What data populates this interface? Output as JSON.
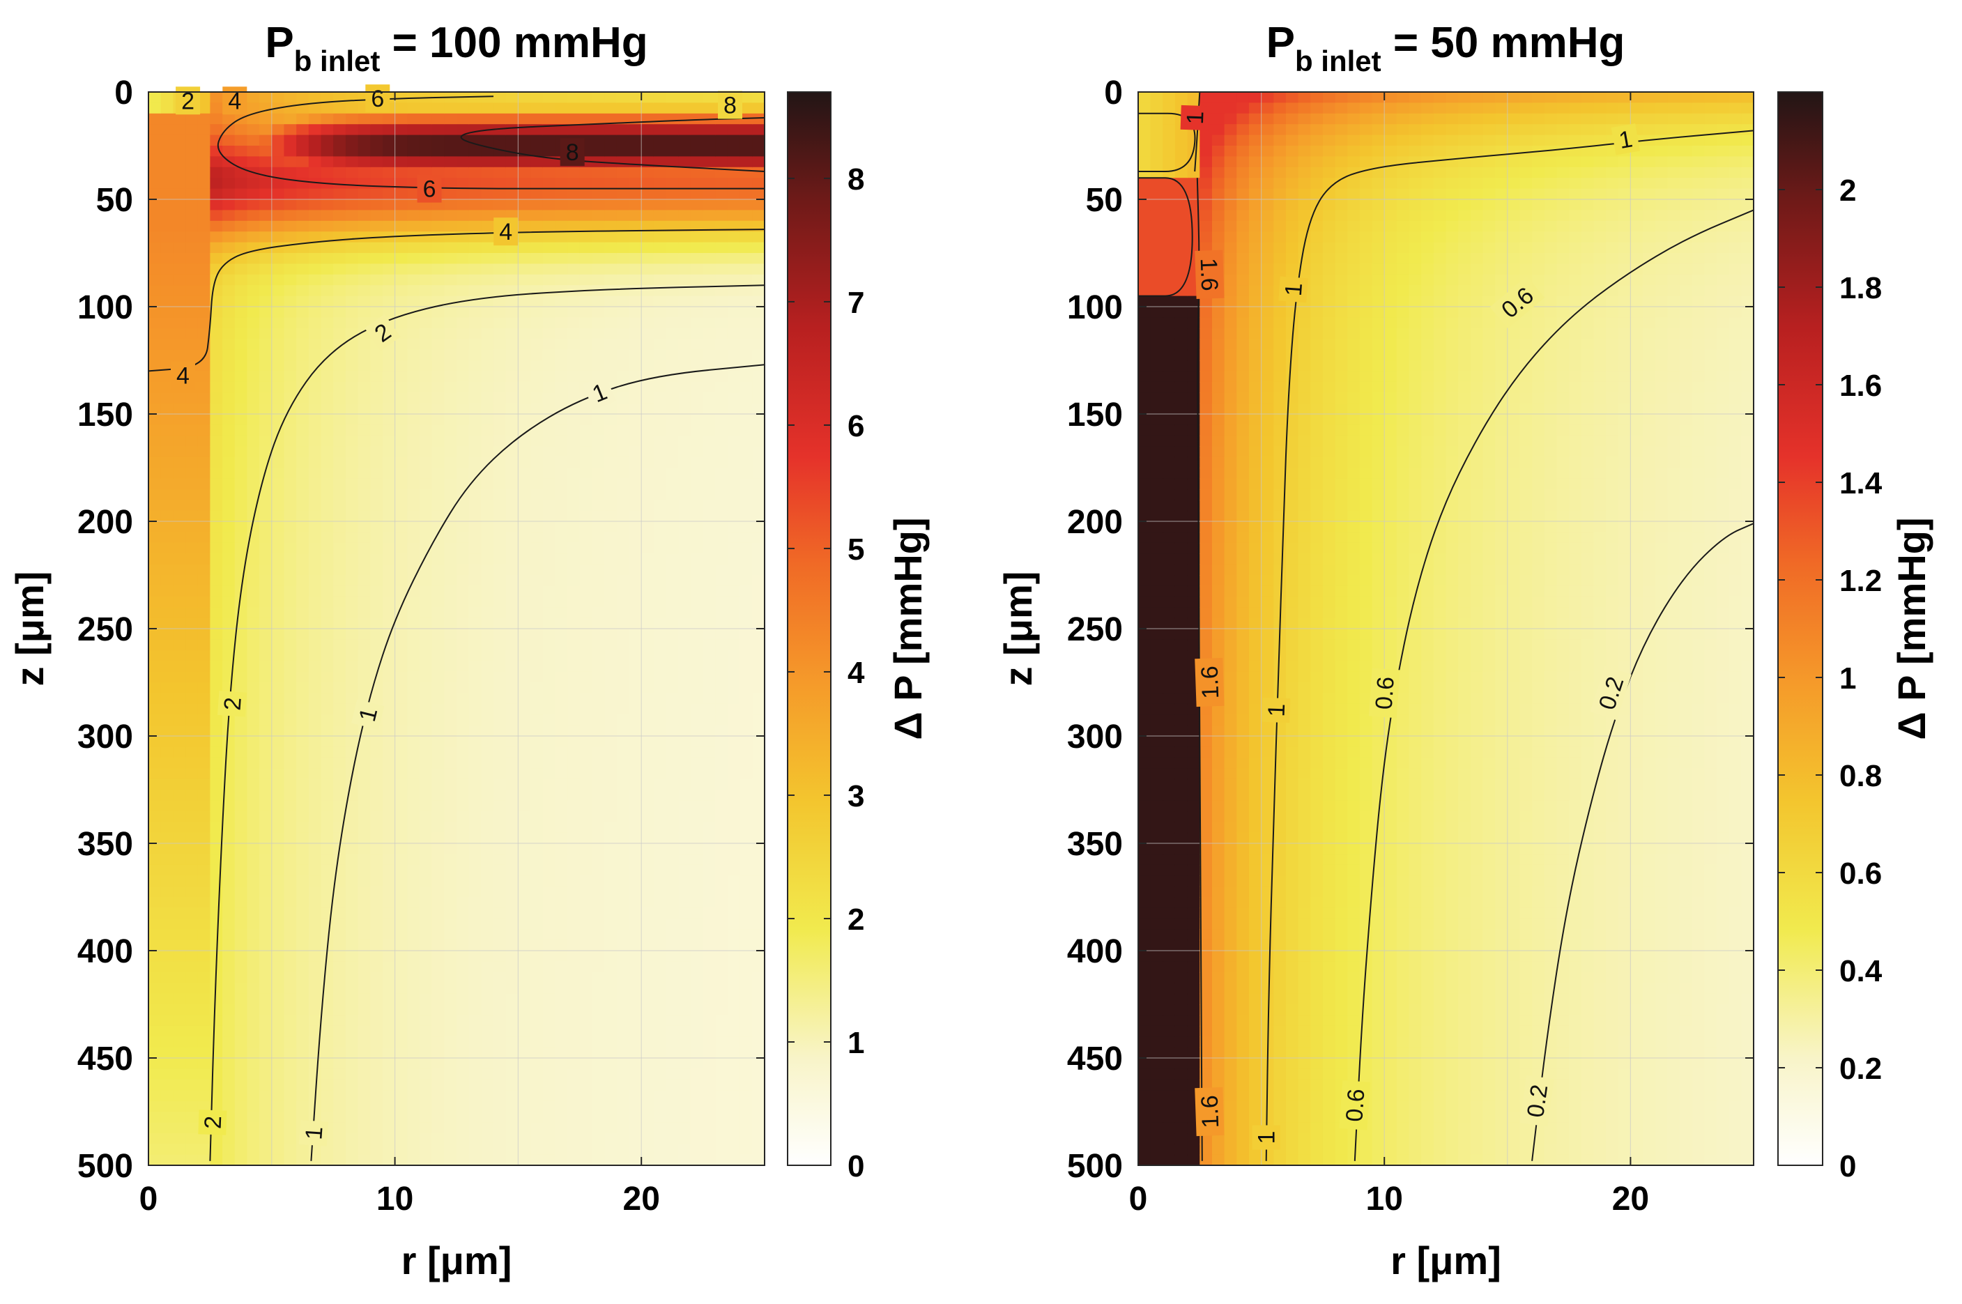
{
  "chart_data": [
    {
      "type": "heatmap",
      "title": {
        "main": "P",
        "sub": "b inlet",
        "rest": " = 100 mmHg"
      },
      "xlabel": "r [μm]",
      "ylabel": "z [μm]",
      "colorbar_label": "Δ P [mmHg]",
      "xlim": [
        0,
        25
      ],
      "ylim": [
        0,
        500
      ],
      "y_reversed": true,
      "clim": [
        0,
        8.7
      ],
      "grid": true,
      "x_ticks": [
        0,
        10,
        20
      ],
      "y_ticks": [
        0,
        50,
        100,
        150,
        200,
        250,
        300,
        350,
        400,
        450,
        500
      ],
      "colorbar_ticks": [
        0,
        1,
        2,
        3,
        4,
        5,
        6,
        7,
        8
      ],
      "contours": [
        {
          "level": 1,
          "label": "1",
          "points": [
            [
              6.6,
              498
            ],
            [
              7.0,
              430
            ],
            [
              7.5,
              370
            ],
            [
              8.2,
              320
            ],
            [
              9.0,
              280
            ],
            [
              10.0,
              245
            ],
            [
              11.5,
              210
            ],
            [
              13.0,
              182
            ],
            [
              15.0,
              160
            ],
            [
              17.5,
              143
            ],
            [
              20.5,
              132
            ],
            [
              25,
              127
            ]
          ]
        },
        {
          "level": 2,
          "label": "2",
          "points": [
            [
              2.5,
              498
            ],
            [
              2.7,
              420
            ],
            [
              3.0,
              340
            ],
            [
              3.3,
              280
            ],
            [
              3.8,
              225
            ],
            [
              4.6,
              180
            ],
            [
              5.6,
              148
            ],
            [
              7.2,
              122
            ],
            [
              9.5,
              106
            ],
            [
              13.0,
              96
            ],
            [
              18.0,
              92
            ],
            [
              25,
              90
            ]
          ]
        },
        {
          "level": 4,
          "label": "4",
          "points": [
            [
              0,
              130
            ],
            [
              2.3,
              128
            ],
            [
              2.5,
              110
            ],
            [
              2.6,
              90
            ],
            [
              3.0,
              80
            ],
            [
              4.0,
              74
            ],
            [
              6.5,
              70
            ],
            [
              10.0,
              67
            ],
            [
              16.0,
              65
            ],
            [
              25,
              64
            ]
          ]
        },
        {
          "level": 6,
          "label": "6",
          "points": [
            [
              25,
              45
            ],
            [
              18.0,
              45
            ],
            [
              12.0,
              45
            ],
            [
              7.0,
              43
            ],
            [
              4.0,
              38
            ],
            [
              2.7,
              28
            ],
            [
              3.0,
              18
            ],
            [
              4.0,
              10
            ],
            [
              6.5,
              5
            ],
            [
              10.0,
              3
            ],
            [
              14.0,
              2
            ]
          ]
        },
        {
          "level": 8,
          "label": "8",
          "points": [
            [
              25,
              37
            ],
            [
              20.0,
              34
            ],
            [
              16.0,
              31
            ],
            [
              13.0,
              24
            ],
            [
              12.5,
              20
            ],
            [
              14.0,
              17
            ],
            [
              18.0,
              15
            ],
            [
              22.0,
              13
            ],
            [
              25,
              12
            ]
          ]
        }
      ],
      "contour_labels": [
        {
          "text": "1",
          "r": 18.3,
          "z": 140,
          "rot": -22
        },
        {
          "text": "1",
          "r": 8.9,
          "z": 290,
          "rot": -76
        },
        {
          "text": "1",
          "r": 6.7,
          "z": 485,
          "rot": -86
        },
        {
          "text": "2",
          "r": 9.5,
          "z": 112,
          "rot": -35
        },
        {
          "text": "2",
          "r": 3.4,
          "z": 285,
          "rot": -86
        },
        {
          "text": "2",
          "r": 2.6,
          "z": 480,
          "rot": -88
        },
        {
          "text": "4",
          "r": 1.4,
          "z": 132,
          "rot": 0
        },
        {
          "text": "4",
          "r": 14.5,
          "z": 65,
          "rot": 0
        },
        {
          "text": "4",
          "r": 3.5,
          "z": 4,
          "rot": 0
        },
        {
          "text": "2",
          "r": 1.6,
          "z": 4,
          "rot": 0
        },
        {
          "text": "6",
          "r": 9.3,
          "z": 3,
          "rot": 0
        },
        {
          "text": "6",
          "r": 11.4,
          "z": 45,
          "rot": 0
        },
        {
          "text": "8",
          "r": 17.2,
          "z": 28,
          "rot": 0
        },
        {
          "text": "8",
          "r": 23.6,
          "z": 6,
          "rot": 0
        }
      ]
    },
    {
      "type": "heatmap",
      "title": {
        "main": "P",
        "sub": "b inlet",
        "rest": " = 50 mmHg"
      },
      "xlabel": "r [μm]",
      "ylabel": "z [μm]",
      "colorbar_label": "Δ P [mmHg]",
      "xlim": [
        0,
        25
      ],
      "ylim": [
        0,
        500
      ],
      "y_reversed": true,
      "clim": [
        0,
        2.2
      ],
      "grid": true,
      "x_ticks": [
        0,
        10,
        20
      ],
      "y_ticks": [
        0,
        50,
        100,
        150,
        200,
        250,
        300,
        350,
        400,
        450,
        500
      ],
      "colorbar_ticks": [
        0,
        0.2,
        0.4,
        0.6,
        0.8,
        1,
        1.2,
        1.4,
        1.6,
        1.8,
        2
      ],
      "contours": [
        {
          "level": 0.2,
          "label": "0.2",
          "points": [
            [
              16.0,
              498
            ],
            [
              16.6,
              440
            ],
            [
              17.4,
              380
            ],
            [
              18.4,
              330
            ],
            [
              19.4,
              290
            ],
            [
              20.6,
              255
            ],
            [
              22.2,
              225
            ],
            [
              23.8,
              207
            ],
            [
              25,
              201
            ]
          ]
        },
        {
          "level": 0.6,
          "label": "0.6",
          "points": [
            [
              8.8,
              498
            ],
            [
              9.1,
              430
            ],
            [
              9.5,
              370
            ],
            [
              9.9,
              320
            ],
            [
              10.4,
              280
            ],
            [
              11.2,
              235
            ],
            [
              12.3,
              195
            ],
            [
              13.8,
              160
            ],
            [
              15.5,
              130
            ],
            [
              17.5,
              105
            ],
            [
              19.8,
              85
            ],
            [
              22.3,
              68
            ],
            [
              25,
              55
            ]
          ]
        },
        {
          "level": 1,
          "label": "1",
          "points": [
            [
              5.2,
              498
            ],
            [
              5.3,
              420
            ],
            [
              5.5,
              340
            ],
            [
              5.7,
              270
            ],
            [
              5.9,
              200
            ],
            [
              6.1,
              140
            ],
            [
              6.4,
              95
            ],
            [
              6.9,
              60
            ],
            [
              7.8,
              42
            ],
            [
              9.5,
              35
            ],
            [
              13.0,
              31
            ],
            [
              17.0,
              27
            ],
            [
              21.0,
              22
            ],
            [
              25,
              18
            ]
          ]
        },
        {
          "level": 1.6,
          "label": "1.6",
          "points": [
            [
              2.6,
              498
            ],
            [
              2.55,
              400
            ],
            [
              2.5,
              300
            ],
            [
              2.45,
              200
            ],
            [
              2.4,
              120
            ],
            [
              2.5,
              80
            ],
            [
              2.4,
              40
            ]
          ]
        },
        {
          "level": 1,
          "label": "",
          "points": [
            [
              2.3,
              37
            ],
            [
              2.4,
              20
            ],
            [
              2.5,
              0
            ]
          ]
        },
        {
          "level": 1.6,
          "label": "",
          "points": [
            [
              0,
              95
            ],
            [
              2.2,
              95
            ],
            [
              2.2,
              40
            ],
            [
              0,
              40
            ]
          ]
        },
        {
          "level": 1,
          "label": "",
          "points": [
            [
              0,
              37
            ],
            [
              2.2,
              37
            ],
            [
              2.4,
              10
            ],
            [
              0,
              10
            ]
          ]
        }
      ],
      "contour_labels": [
        {
          "text": "0.2",
          "r": 19.2,
          "z": 280,
          "rot": -72
        },
        {
          "text": "0.2",
          "r": 16.2,
          "z": 470,
          "rot": -82
        },
        {
          "text": "0.6",
          "r": 15.4,
          "z": 98,
          "rot": -40
        },
        {
          "text": "0.6",
          "r": 10.0,
          "z": 280,
          "rot": -86
        },
        {
          "text": "0.6",
          "r": 8.8,
          "z": 472,
          "rot": -86
        },
        {
          "text": "1",
          "r": 19.8,
          "z": 22,
          "rot": -10
        },
        {
          "text": "1",
          "r": 6.3,
          "z": 92,
          "rot": -86
        },
        {
          "text": "1",
          "r": 5.6,
          "z": 288,
          "rot": -88
        },
        {
          "text": "1",
          "r": 5.2,
          "z": 487,
          "rot": -90
        },
        {
          "text": "1.6",
          "r": 2.9,
          "z": 85,
          "rot": 88
        },
        {
          "text": "1.6",
          "r": 2.9,
          "z": 275,
          "rot": -92
        },
        {
          "text": "1.6",
          "r": 2.9,
          "z": 475,
          "rot": -92
        },
        {
          "text": "1",
          "r": 2.3,
          "z": 12,
          "rot": -88
        }
      ]
    }
  ]
}
